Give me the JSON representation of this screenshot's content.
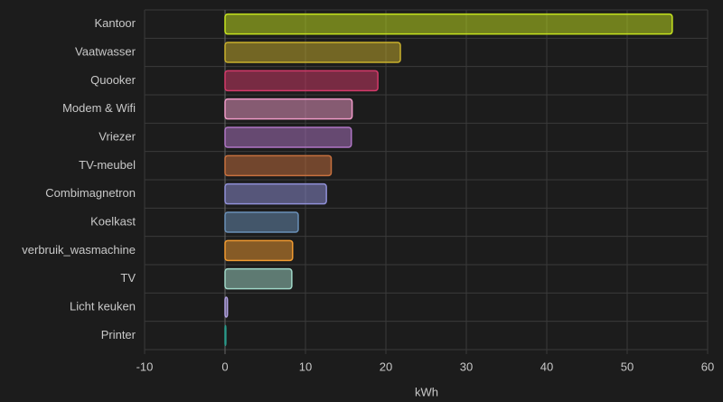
{
  "chart_data": {
    "type": "bar",
    "orientation": "horizontal",
    "x_label": "kWh",
    "categories": [
      "Kantoor",
      "Vaatwasser",
      "Quooker",
      "Modem & Wifi",
      "Vriezer",
      "TV-meubel",
      "Combimagnetron",
      "Koelkast",
      "verbruik_wasmachine",
      "TV",
      "Licht keuken",
      "Printer"
    ],
    "values": [
      55.6,
      21.8,
      19.0,
      15.8,
      15.7,
      13.2,
      12.6,
      9.1,
      8.4,
      8.3,
      0.3,
      0.1
    ],
    "colors": [
      "#c5e31e",
      "#c9b02c",
      "#d33a6a",
      "#f09ac8",
      "#b076c6",
      "#c7703e",
      "#9090d8",
      "#6a90b8",
      "#f09a30",
      "#a0d8c8",
      "#b0a0e0",
      "#2a9a8a"
    ],
    "xlim": [
      -10,
      60
    ],
    "xticks": [
      -10,
      0,
      10,
      20,
      30,
      40,
      50,
      60
    ],
    "grid": true
  }
}
